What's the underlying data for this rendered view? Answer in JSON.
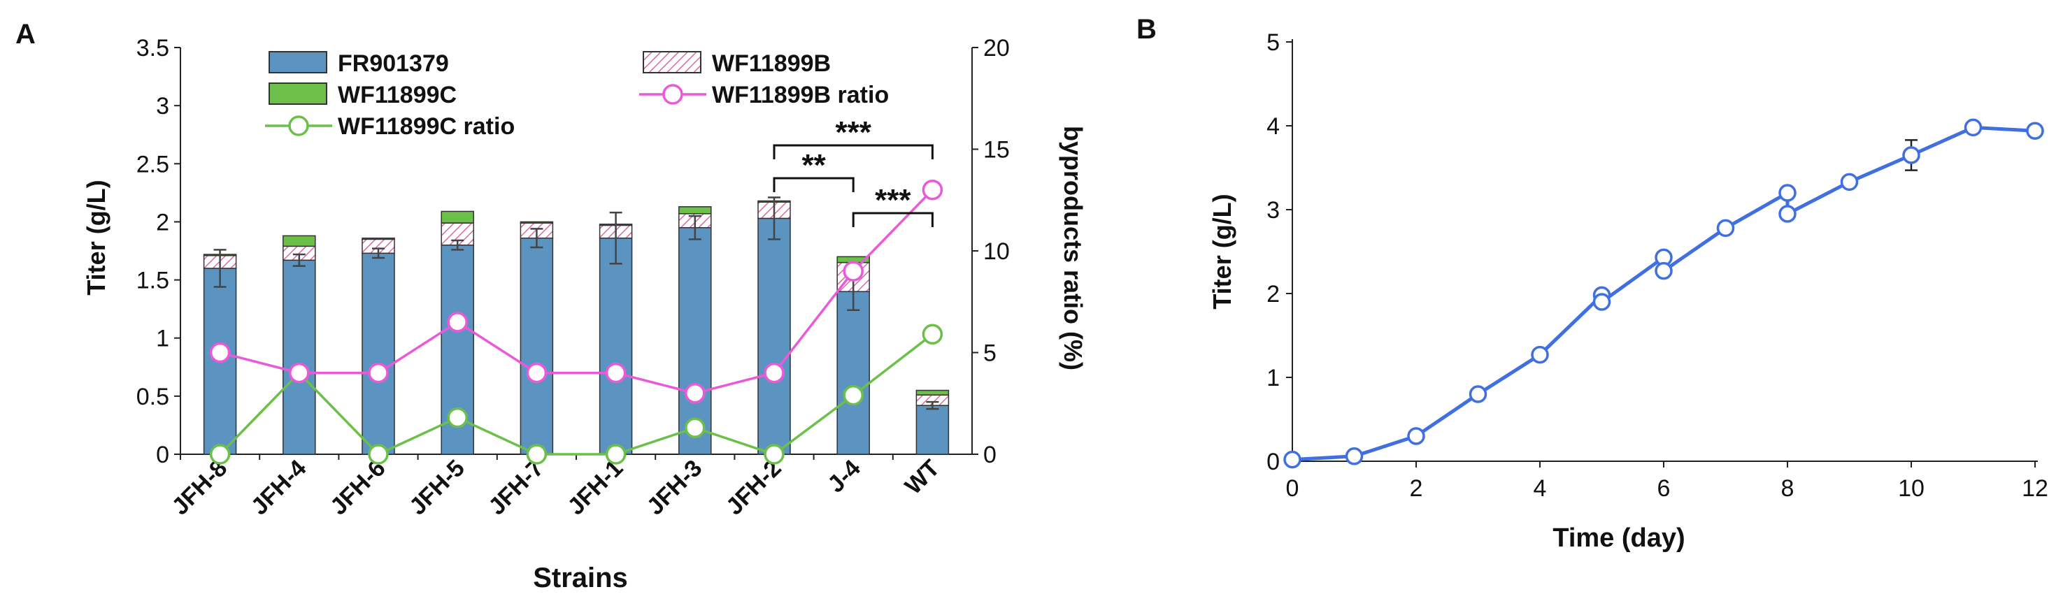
{
  "panels": {
    "a_letter": "A",
    "b_letter": "B"
  },
  "colors": {
    "bar_main": "#5b93c1",
    "bar_c": "#6cc04a",
    "hatch": "#d86aa0",
    "line_b_ratio": "#ea5ad8",
    "line_c_ratio": "#6cc04a",
    "line_time": "#3f6fe0",
    "axis": "#222222",
    "error": "#444444"
  },
  "chart_data": [
    {
      "type": "bar",
      "stacked": true,
      "panel": "A",
      "xlabel": "Strains",
      "ylabel": "Titer (g/L)",
      "y2label": "byproducts ratio (%)",
      "ylim": [
        0,
        3.5
      ],
      "y2lim": [
        0,
        20
      ],
      "yticks": [
        "0",
        "0.5",
        "1",
        "1.5",
        "2",
        "2.5",
        "3",
        "3.5"
      ],
      "y2ticks": [
        "0",
        "5",
        "10",
        "15",
        "20"
      ],
      "categories": [
        "JFH-8",
        "JFH-4",
        "JFH-6",
        "JFH-5",
        "JFH-7",
        "JFH-1",
        "JFH-3",
        "JFH-2",
        "J-4",
        "WT"
      ],
      "legend": [
        "FR901379",
        "WF11899B",
        "WF11899C",
        "WF11899B ratio",
        "WF11899C ratio"
      ],
      "series": [
        {
          "name": "FR901379",
          "values": [
            1.6,
            1.67,
            1.73,
            1.8,
            1.86,
            1.86,
            1.95,
            2.03,
            1.4,
            0.42
          ]
        },
        {
          "name": "WF11899B",
          "values": [
            0.11,
            0.12,
            0.12,
            0.19,
            0.13,
            0.11,
            0.12,
            0.14,
            0.25,
            0.09
          ]
        },
        {
          "name": "WF11899C",
          "values": [
            0.01,
            0.09,
            0.01,
            0.1,
            0.01,
            0.01,
            0.06,
            0.01,
            0.05,
            0.04
          ]
        },
        {
          "name": "WF11899B ratio",
          "axis": "right",
          "values": [
            5.0,
            4.0,
            4.0,
            6.5,
            4.0,
            4.0,
            3.0,
            4.0,
            9.0,
            13.0
          ]
        },
        {
          "name": "WF11899C ratio",
          "axis": "right",
          "values": [
            0.0,
            4.0,
            0.0,
            1.8,
            0.0,
            0.0,
            1.3,
            0.0,
            2.9,
            5.9
          ]
        }
      ],
      "error_bars": [
        0.16,
        0.05,
        0.04,
        0.04,
        0.08,
        0.22,
        0.1,
        0.18,
        0.16,
        0.03
      ],
      "significance": [
        {
          "from": "JFH-2",
          "to": "J-4",
          "label": "**"
        },
        {
          "from": "JFH-2",
          "to": "WT",
          "label": "***"
        },
        {
          "from": "J-4",
          "to": "WT",
          "label": "***"
        }
      ]
    },
    {
      "type": "line",
      "panel": "B",
      "xlabel": "Time (day)",
      "ylabel": "Titer (g/L)",
      "xlim": [
        0,
        12
      ],
      "ylim": [
        0,
        5
      ],
      "xticks": [
        "0",
        "2",
        "4",
        "6",
        "8",
        "10",
        "12"
      ],
      "yticks": [
        "0",
        "1",
        "2",
        "3",
        "4",
        "5"
      ],
      "x": [
        0,
        1,
        2,
        3,
        4,
        5,
        5,
        6,
        6,
        7,
        8,
        8,
        9,
        10,
        11,
        12
      ],
      "y": [
        0.02,
        0.06,
        0.3,
        0.8,
        1.27,
        1.98,
        1.9,
        2.43,
        2.27,
        2.78,
        3.2,
        2.95,
        3.33,
        3.65,
        3.98,
        3.94
      ],
      "error_bars": [
        0,
        0,
        0,
        0,
        0,
        0,
        0,
        0,
        0,
        0,
        0,
        0,
        0,
        0.18,
        0,
        0
      ]
    }
  ]
}
